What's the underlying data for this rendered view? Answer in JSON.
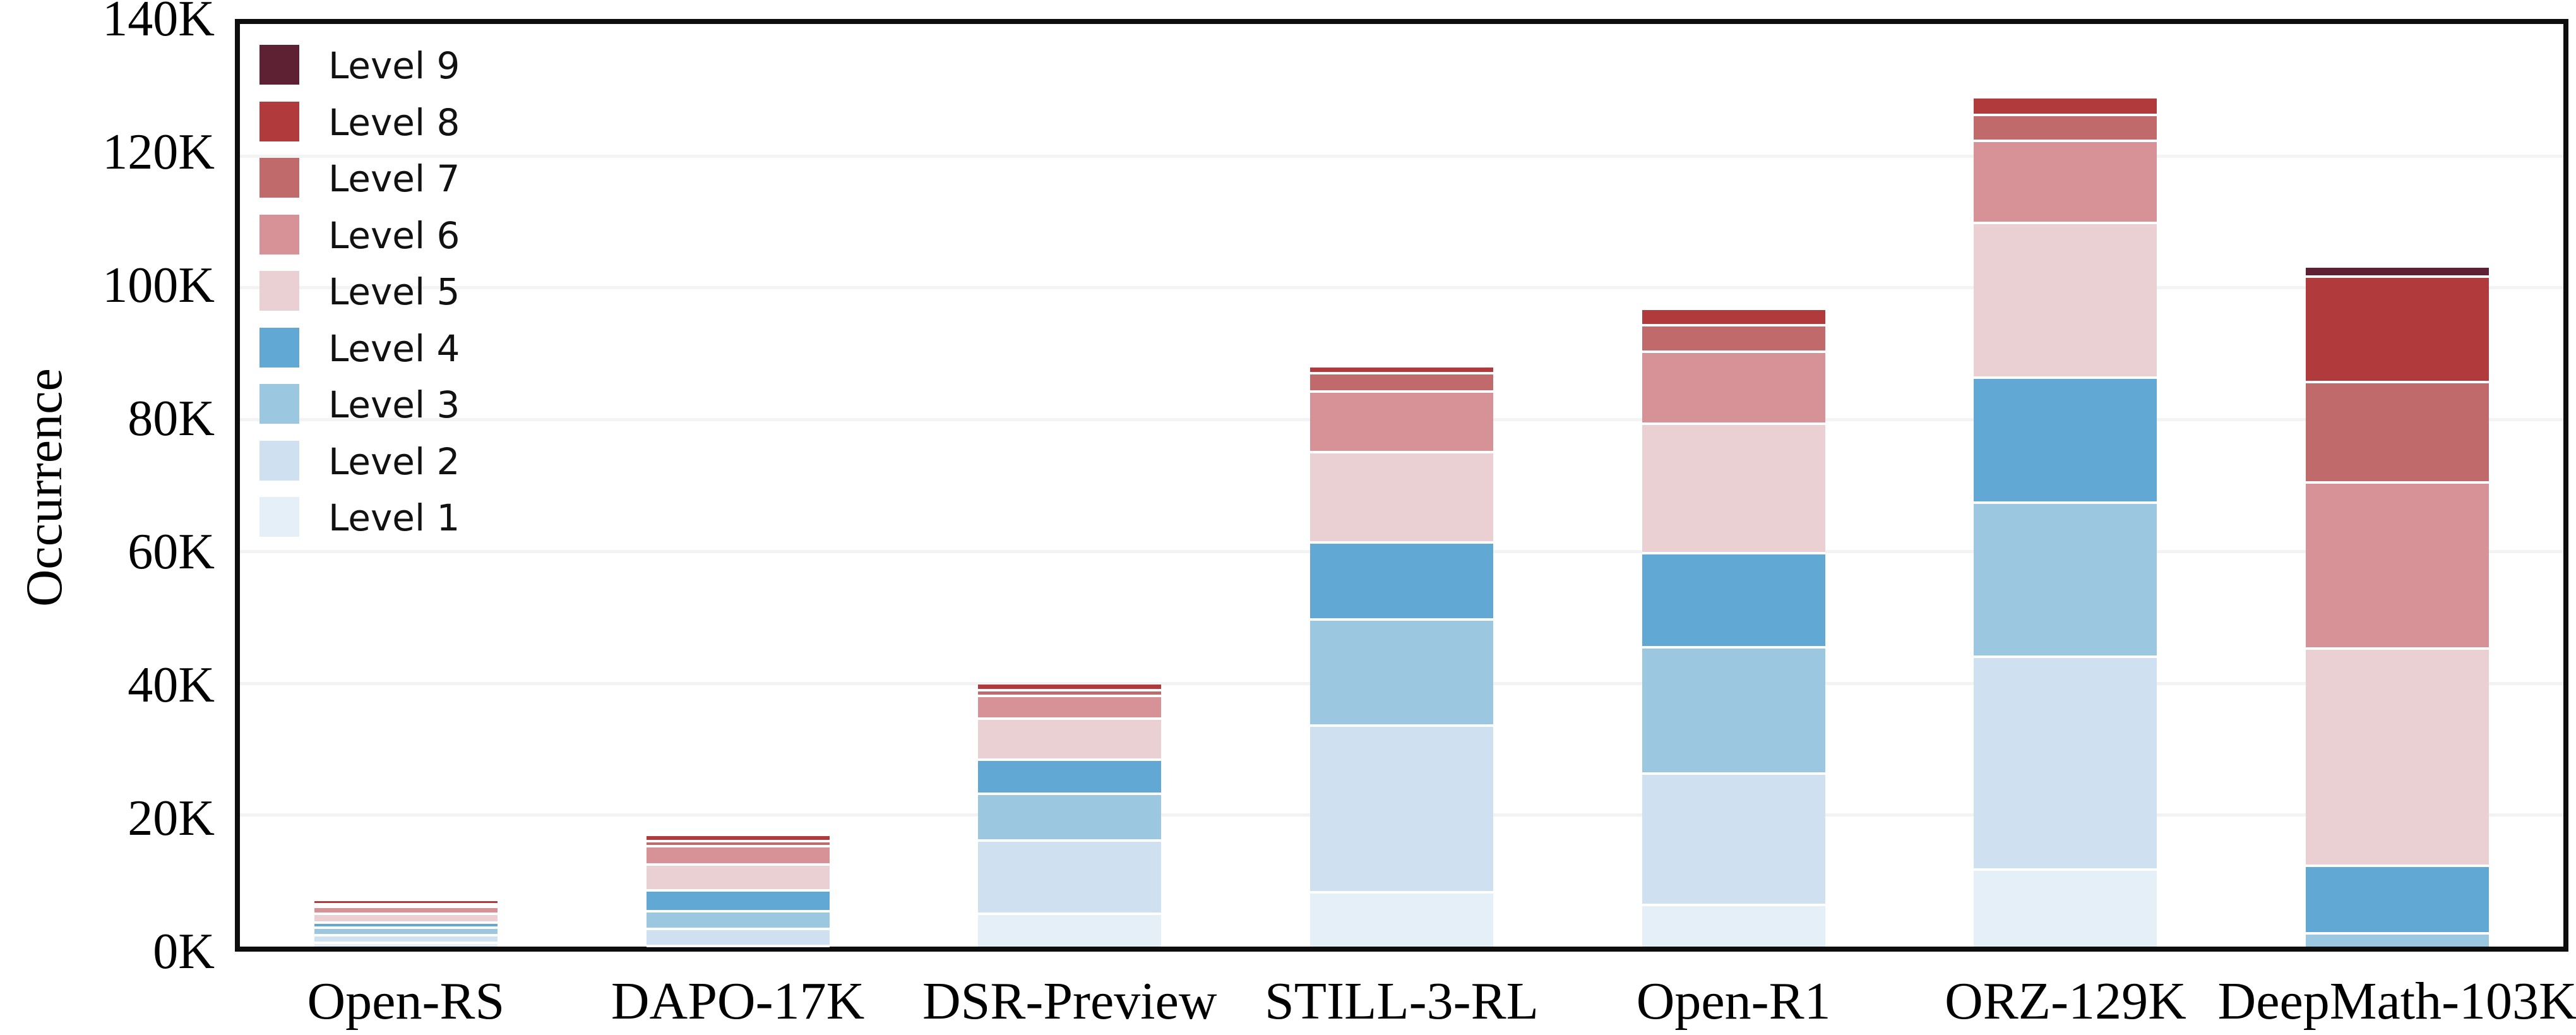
{
  "chart_data": {
    "type": "bar",
    "stacked": true,
    "title": "",
    "xlabel": "",
    "ylabel": "Occurrence",
    "grid": true,
    "legend_position": "upper-left",
    "legend_order_top_to_bottom": [
      "Level 9",
      "Level 8",
      "Level 7",
      "Level 6",
      "Level 5",
      "Level 4",
      "Level 3",
      "Level 2",
      "Level 1"
    ],
    "categories": [
      "Open-RS",
      "DAPO-17K",
      "DSR-Preview",
      "STILL-3-RL",
      "Open-R1",
      "ORZ-129K",
      "DeepMath-103K"
    ],
    "y_axis": {
      "min": 0,
      "max": 140,
      "tick_step": 20,
      "unit": "K",
      "tick_labels": [
        "0K",
        "20K",
        "40K",
        "60K",
        "80K",
        "100K",
        "120K",
        "140K"
      ]
    },
    "series": [
      {
        "name": "Level 1",
        "color": "#e5eff8",
        "values": [
          0.6,
          0.1,
          5.0,
          8.2,
          6.3,
          11.7,
          0.0
        ]
      },
      {
        "name": "Level 2",
        "color": "#cfe1f0",
        "values": [
          1.1,
          2.6,
          11.1,
          25.3,
          20.0,
          32.3,
          0.0
        ]
      },
      {
        "name": "Level 3",
        "color": "#9bc7e1",
        "values": [
          1.2,
          2.7,
          7.1,
          16.1,
          19.1,
          23.4,
          2.0
        ]
      },
      {
        "name": "Level 4",
        "color": "#61a9d4",
        "values": [
          0.7,
          3.1,
          5.2,
          11.7,
          14.3,
          18.9,
          10.3
        ]
      },
      {
        "name": "Level 5",
        "color": "#ebd0d3",
        "values": [
          1.4,
          4.0,
          6.2,
          13.7,
          19.6,
          23.5,
          32.9
        ]
      },
      {
        "name": "Level 6",
        "color": "#d79298",
        "values": [
          1.0,
          2.7,
          3.4,
          9.2,
          11.0,
          12.5,
          25.2
        ]
      },
      {
        "name": "Level 7",
        "color": "#c06a6b",
        "values": [
          0.4,
          0.8,
          0.9,
          2.8,
          4.0,
          3.9,
          15.3
        ]
      },
      {
        "name": "Level 8",
        "color": "#b13a3c",
        "values": [
          0.5,
          0.8,
          0.9,
          0.9,
          2.3,
          2.5,
          16.0
        ]
      },
      {
        "name": "Level 9",
        "color": "#5e2134",
        "values": [
          0.0,
          0.0,
          0.0,
          0.0,
          0.0,
          0.0,
          1.3
        ]
      }
    ],
    "bar_totals_K": [
      6.9,
      16.8,
      39.8,
      87.9,
      96.6,
      128.7,
      103.0
    ]
  },
  "style": {
    "axis_color": "#0d0d0d",
    "gridline_color": "#f3f3f3",
    "separator_color": "#ffffff",
    "background": "#ffffff"
  }
}
